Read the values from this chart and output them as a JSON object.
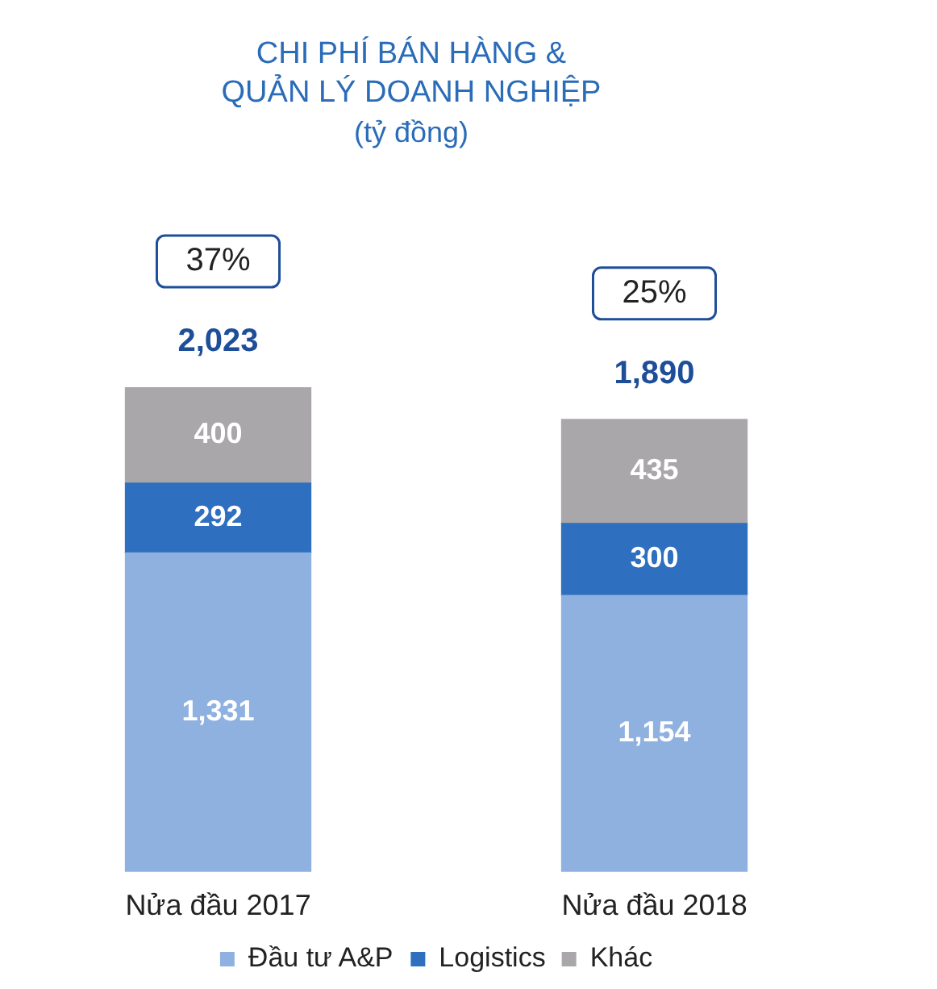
{
  "chart_data": {
    "type": "bar",
    "title": "CHI PHÍ BÁN HÀNG & QUẢN LÝ DOANH NGHIỆP",
    "subtitle": "(tỷ đồng)",
    "categories": [
      "Nửa đầu 2017",
      "Nửa đầu 2018"
    ],
    "series": [
      {
        "name": "Đầu tư A&P",
        "color": "#8fb1e0",
        "values": [
          1331,
          1154
        ],
        "value_labels": [
          "1,331",
          "1,154"
        ]
      },
      {
        "name": "Logistics",
        "color": "#2e6fbf",
        "values": [
          292,
          300
        ],
        "value_labels": [
          "292",
          "300"
        ]
      },
      {
        "name": "Khác",
        "color": "#a9a7aa",
        "values": [
          400,
          435
        ],
        "value_labels": [
          "400",
          "435"
        ]
      }
    ],
    "stacked": true,
    "totals": [
      "2,023",
      "1,890"
    ],
    "annotations": [
      "37%",
      "25%"
    ],
    "legend": "bottom",
    "grid": false
  }
}
